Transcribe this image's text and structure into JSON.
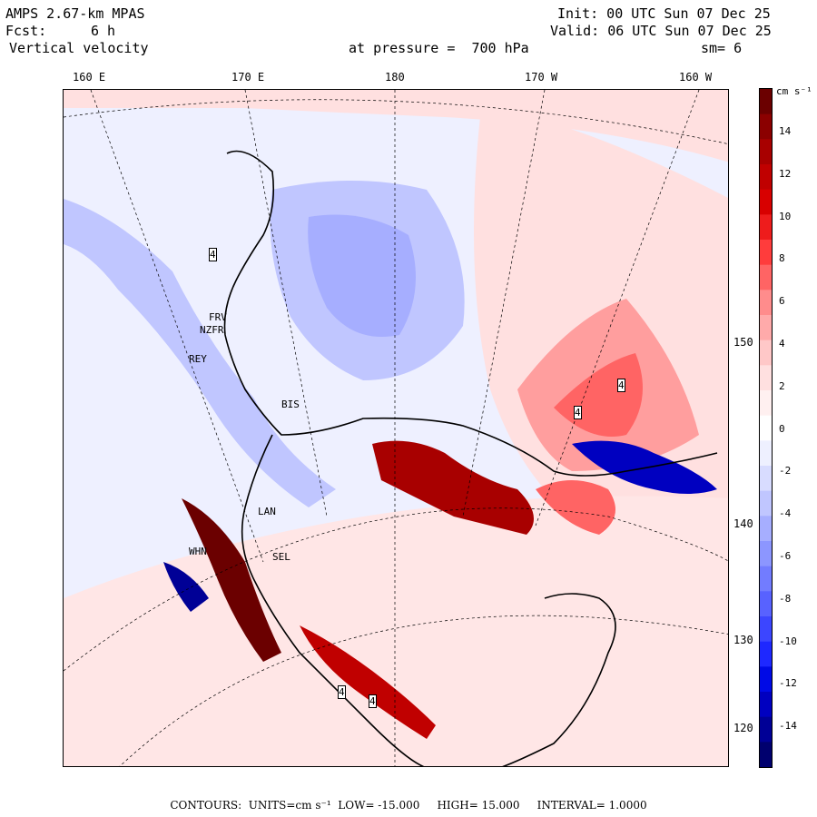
{
  "header": {
    "title": "AMPS 2.67-km MPAS",
    "forecast_label": "Fcst:",
    "forecast_value": "6 h",
    "field": "Vertical velocity",
    "init": "Init: 00 UTC Sun 07 Dec 25",
    "valid": "Valid: 06 UTC Sun 07 Dec 25",
    "pressure": "at pressure =  700 hPa",
    "smoothing": "sm= 6"
  },
  "lon_labels": [
    "160 E",
    "170 E",
    "180",
    "170 W",
    "160 W"
  ],
  "lat_labels": [
    "150 W",
    "140 W",
    "130 W",
    "120 W"
  ],
  "colorbar": {
    "units": "cm s⁻¹",
    "ticks": [
      "14",
      "12",
      "10",
      "8",
      "6",
      "4",
      "2",
      "0",
      "-2",
      "-4",
      "-6",
      "-8",
      "-10",
      "-12",
      "-14"
    ],
    "colors_top_to_bottom": [
      "#6b0000",
      "#8b0000",
      "#a80000",
      "#c00000",
      "#d80000",
      "#ee1c1c",
      "#ff3c3c",
      "#ff6464",
      "#ff8c8c",
      "#ffaaaa",
      "#ffc8c8",
      "#ffe0e0",
      "#fff0f0",
      "#ffffff",
      "#eef0ff",
      "#d8dcff",
      "#c0c6ff",
      "#a6aeff",
      "#8c96ff",
      "#727cff",
      "#5862ff",
      "#3c46ff",
      "#1e28ff",
      "#000ae6",
      "#0000c0",
      "#000096",
      "#00006e"
    ]
  },
  "stations": [
    "FRV",
    "NZFR",
    "REY",
    "BIS",
    "LAN",
    "WHN",
    "SEL",
    "4",
    "4",
    "4",
    "4",
    "4"
  ],
  "footer": {
    "contours_label": "CONTOURS:",
    "units": "UNITS=cm s⁻¹",
    "low": "LOW= -15.000",
    "high": "HIGH= 15.000",
    "interval": "INTERVAL= 1.0000"
  }
}
